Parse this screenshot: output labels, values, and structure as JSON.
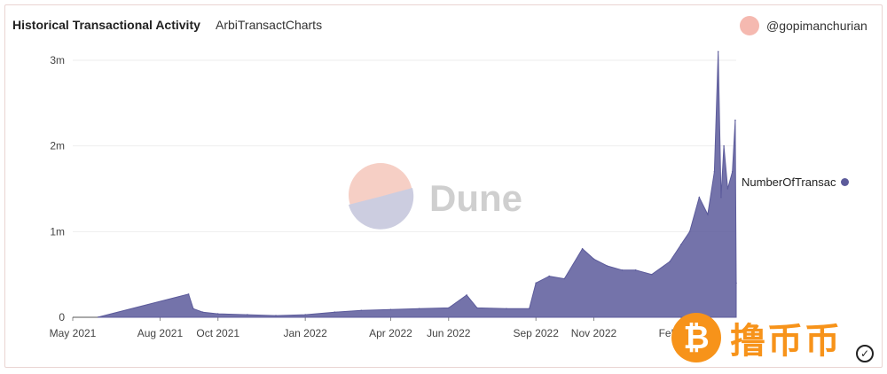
{
  "header": {
    "title": "Historical Transactional Activity",
    "subtitle": "ArbiTransactCharts",
    "author": "@gopimanchurian"
  },
  "watermark": {
    "text": "Dune",
    "bottom_text": "撸币币",
    "coin_symbol": "₿",
    "check_symbol": "✓"
  },
  "colors": {
    "series": "#5c5b9b",
    "grid": "#eeeeee",
    "avatar": "#f5b9b0",
    "dune_top": "#f6cfc5",
    "dune_bottom": "#cccde0",
    "dune_text": "#cfcfcf",
    "watermark_orange": "#f7931a"
  },
  "chart_data": {
    "type": "area",
    "title": "Historical Transactional Activity",
    "subtitle": "ArbiTransactCharts",
    "xlabel": "",
    "ylabel": "",
    "x_ticks": [
      "May 2021",
      "Aug 2021",
      "Oct 2021",
      "Jan 2022",
      "Apr 2022",
      "Jun 2022",
      "Sep 2022",
      "Nov 2022",
      "Feb 2023"
    ],
    "y_ticks": [
      "0",
      "1m",
      "2m",
      "3m"
    ],
    "ylim": [
      0,
      3000000
    ],
    "xlim": [
      "2021-05-01",
      "2023-03-31"
    ],
    "grid": true,
    "legend_position": "right",
    "series": [
      {
        "name": "NumberOfTransac",
        "points": [
          [
            "2021-05-28",
            2000
          ],
          [
            "2021-08-31",
            270000
          ],
          [
            "2021-09-05",
            100000
          ],
          [
            "2021-09-15",
            60000
          ],
          [
            "2021-10-01",
            40000
          ],
          [
            "2021-11-01",
            30000
          ],
          [
            "2021-12-01",
            20000
          ],
          [
            "2022-01-01",
            30000
          ],
          [
            "2022-02-01",
            60000
          ],
          [
            "2022-03-01",
            80000
          ],
          [
            "2022-04-01",
            90000
          ],
          [
            "2022-05-01",
            100000
          ],
          [
            "2022-06-01",
            110000
          ],
          [
            "2022-06-20",
            260000
          ],
          [
            "2022-07-01",
            110000
          ],
          [
            "2022-08-01",
            100000
          ],
          [
            "2022-08-25",
            100000
          ],
          [
            "2022-09-01",
            400000
          ],
          [
            "2022-09-15",
            480000
          ],
          [
            "2022-10-01",
            450000
          ],
          [
            "2022-10-20",
            800000
          ],
          [
            "2022-11-01",
            680000
          ],
          [
            "2022-11-15",
            600000
          ],
          [
            "2022-12-01",
            550000
          ],
          [
            "2022-12-15",
            550000
          ],
          [
            "2023-01-01",
            500000
          ],
          [
            "2023-01-20",
            650000
          ],
          [
            "2023-02-01",
            850000
          ],
          [
            "2023-02-10",
            1000000
          ],
          [
            "2023-02-20",
            1400000
          ],
          [
            "2023-03-01",
            1200000
          ],
          [
            "2023-03-08",
            1700000
          ],
          [
            "2023-03-12",
            3100000
          ],
          [
            "2023-03-15",
            1400000
          ],
          [
            "2023-03-18",
            2000000
          ],
          [
            "2023-03-22",
            1500000
          ],
          [
            "2023-03-27",
            1700000
          ],
          [
            "2023-03-30",
            2300000
          ],
          [
            "2023-03-31",
            400000
          ]
        ]
      }
    ]
  }
}
